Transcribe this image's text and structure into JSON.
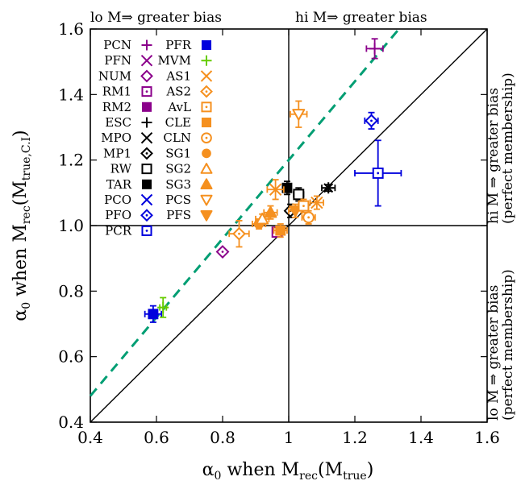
{
  "chart_data": {
    "type": "scatter",
    "xlabel": "α0 when Mrec(Mtrue)",
    "ylabel": "α0 when Mrec(Mtrue,C.I)",
    "xlabel_parts": {
      "main": "α",
      "sub": "0",
      "mid": " when M",
      "sub2": "rec",
      "mid2": "(M",
      "sub3": "true",
      "end": ")"
    },
    "ylabel_parts": {
      "main": "α",
      "sub": "0",
      "mid": " when M",
      "sub2": "rec",
      "mid2": "(M",
      "sub3": "true,C.I",
      "end": ")"
    },
    "xlim": [
      0.4,
      1.6
    ],
    "ylim": [
      0.4,
      1.6
    ],
    "xticks": [
      "0.4",
      "0.6",
      "0.8",
      "1",
      "1.2",
      "1.4",
      "1.6"
    ],
    "yticks": [
      "0.4",
      "0.6",
      "0.8",
      "1.0",
      "1.2",
      "1.4",
      "1.6"
    ],
    "xtick_values": [
      0.4,
      0.6,
      0.8,
      1.0,
      1.2,
      1.4,
      1.6
    ],
    "ytick_values": [
      0.4,
      0.6,
      0.8,
      1.0,
      1.2,
      1.4,
      1.6
    ],
    "annotations": {
      "top_left": "lo M⇒ greater bias",
      "top_right": "hi M⇒ greater bias",
      "right_upper_1": "hi M ⇒ greater bias",
      "right_upper_2": "(perfect membership)",
      "right_lower_1": "lo M ⇒ greater bias",
      "right_lower_2": "(perfect membership)"
    },
    "colors": {
      "purple": "#8b008b",
      "green": "#66cc00",
      "blue": "#0000dd",
      "orange": "#f5901f",
      "black": "#000000",
      "teal": "#009e73"
    },
    "fit_line": {
      "slope": 1.2,
      "intercept": 0.0,
      "color": "#009e73",
      "style": "dashed"
    },
    "reference_lines": {
      "diagonal": true,
      "x": 1.0,
      "y": 1.0
    },
    "legend": [
      {
        "name": "PCN",
        "marker": "plus",
        "color": "#8b008b"
      },
      {
        "name": "PFN",
        "marker": "cross",
        "color": "#8b008b"
      },
      {
        "name": "NUM",
        "marker": "diamond-open",
        "color": "#8b008b"
      },
      {
        "name": "RM1",
        "marker": "square-dot",
        "color": "#8b008b"
      },
      {
        "name": "RM2",
        "marker": "square-filled",
        "color": "#8b008b"
      },
      {
        "name": "ESC",
        "marker": "plus",
        "color": "#000000"
      },
      {
        "name": "MPO",
        "marker": "cross",
        "color": "#000000"
      },
      {
        "name": "MP1",
        "marker": "diamond-open",
        "color": "#000000"
      },
      {
        "name": "RW",
        "marker": "square-open",
        "color": "#000000"
      },
      {
        "name": "TAR",
        "marker": "square-filled",
        "color": "#000000"
      },
      {
        "name": "PCO",
        "marker": "cross",
        "color": "#0000dd"
      },
      {
        "name": "PFO",
        "marker": "diamond-open",
        "color": "#0000dd"
      },
      {
        "name": "PCR",
        "marker": "square-dot",
        "color": "#0000dd"
      },
      {
        "name": "PFR",
        "marker": "square-filled",
        "color": "#0000dd"
      },
      {
        "name": "MVM",
        "marker": "plus",
        "color": "#66cc00"
      },
      {
        "name": "AS1",
        "marker": "cross",
        "color": "#f5901f"
      },
      {
        "name": "AS2",
        "marker": "diamond-open",
        "color": "#f5901f"
      },
      {
        "name": "AvL",
        "marker": "square-dot",
        "color": "#f5901f"
      },
      {
        "name": "CLE",
        "marker": "square-filled",
        "color": "#f5901f"
      },
      {
        "name": "CLN",
        "marker": "circle-dot",
        "color": "#f5901f"
      },
      {
        "name": "SG1",
        "marker": "circle-filled",
        "color": "#f5901f"
      },
      {
        "name": "SG2",
        "marker": "triangle-up-open",
        "color": "#f5901f"
      },
      {
        "name": "SG3",
        "marker": "triangle-up-filled",
        "color": "#f5901f"
      },
      {
        "name": "PCS",
        "marker": "triangle-down-open",
        "color": "#f5901f"
      },
      {
        "name": "PFS",
        "marker": "triangle-down-filled",
        "color": "#f5901f"
      }
    ],
    "legend_columns": [
      [
        "PCN",
        "PFN",
        "NUM",
        "RM1",
        "RM2",
        "ESC",
        "MPO",
        "MP1",
        "RW",
        "TAR",
        "PCO",
        "PFO",
        "PCR"
      ],
      [
        "PFR",
        "MVM",
        "AS1",
        "AS2",
        "AvL",
        "CLE",
        "CLN",
        "SG1",
        "SG2",
        "SG3",
        "PCS",
        "PFS"
      ]
    ],
    "legend_marker_columns": [
      [
        {
          "m": "plus",
          "c": "#8b008b"
        },
        {
          "m": "cross",
          "c": "#8b008b"
        },
        {
          "m": "diamond-open",
          "c": "#8b008b"
        },
        {
          "m": "square-dot",
          "c": "#8b008b"
        },
        {
          "m": "square-filled",
          "c": "#8b008b"
        },
        {
          "m": "plus",
          "c": "#000000"
        },
        {
          "m": "cross",
          "c": "#000000"
        },
        {
          "m": "diamond-dot",
          "c": "#000000"
        },
        {
          "m": "square-open",
          "c": "#000000"
        },
        {
          "m": "square-filled",
          "c": "#000000"
        },
        {
          "m": "cross",
          "c": "#0000dd"
        },
        {
          "m": "diamond-dot",
          "c": "#0000dd"
        },
        {
          "m": "square-dot",
          "c": "#0000dd"
        }
      ],
      [
        {
          "m": "square-filled",
          "c": "#0000dd"
        },
        {
          "m": "plus",
          "c": "#66cc00"
        },
        {
          "m": "cross",
          "c": "#f5901f"
        },
        {
          "m": "diamond-dot",
          "c": "#f5901f"
        },
        {
          "m": "square-dot",
          "c": "#f5901f"
        },
        {
          "m": "square-filled",
          "c": "#f5901f"
        },
        {
          "m": "circle-dot",
          "c": "#f5901f"
        },
        {
          "m": "circle-filled",
          "c": "#f5901f"
        },
        {
          "m": "triangle-up-open",
          "c": "#f5901f"
        },
        {
          "m": "triangle-up-filled",
          "c": "#f5901f"
        },
        {
          "m": "triangle-down-open",
          "c": "#f5901f"
        },
        {
          "m": "triangle-down-filled",
          "c": "#f5901f"
        }
      ]
    ],
    "points": [
      {
        "x": 1.26,
        "y": 1.54,
        "xerr": 0.025,
        "yerr": 0.03,
        "marker": "plus",
        "color": "#8b008b"
      },
      {
        "x": 0.8,
        "y": 0.92,
        "xerr": 0.0,
        "yerr": 0.0,
        "marker": "diamond-dot",
        "color": "#8b008b"
      },
      {
        "x": 0.965,
        "y": 0.98,
        "xerr": 0.0,
        "yerr": 0.0,
        "marker": "square-dot",
        "color": "#8b008b"
      },
      {
        "x": 0.995,
        "y": 1.115,
        "xerr": 0.012,
        "yerr": 0.02,
        "marker": "square-filled",
        "color": "#000000"
      },
      {
        "x": 1.03,
        "y": 1.095,
        "xerr": 0.015,
        "yerr": 0.02,
        "marker": "square-open",
        "color": "#000000"
      },
      {
        "x": 1.005,
        "y": 1.045,
        "xerr": 0.01,
        "yerr": 0.02,
        "marker": "diamond-dot",
        "color": "#000000"
      },
      {
        "x": 1.12,
        "y": 1.115,
        "xerr": 0.02,
        "yerr": 0.01,
        "marker": "asterisk",
        "color": "#000000"
      },
      {
        "x": 1.25,
        "y": 1.32,
        "xerr": 0.02,
        "yerr": 0.025,
        "marker": "diamond-dot",
        "color": "#0000dd"
      },
      {
        "x": 1.27,
        "y": 1.16,
        "xerr": 0.07,
        "yerr": 0.1,
        "marker": "square-dot",
        "color": "#0000dd"
      },
      {
        "x": 0.59,
        "y": 0.73,
        "xerr": 0.025,
        "yerr": 0.025,
        "marker": "square-filled",
        "color": "#0000dd"
      },
      {
        "x": 0.62,
        "y": 0.75,
        "xerr": 0.01,
        "yerr": 0.03,
        "marker": "plus",
        "color": "#66cc00"
      },
      {
        "x": 1.03,
        "y": 1.34,
        "xerr": 0.025,
        "yerr": 0.04,
        "marker": "triangle-down-open",
        "color": "#f5901f"
      },
      {
        "x": 0.96,
        "y": 1.11,
        "xerr": 0.025,
        "yerr": 0.03,
        "marker": "cross",
        "color": "#f5901f"
      },
      {
        "x": 0.85,
        "y": 0.975,
        "xerr": 0.03,
        "yerr": 0.04,
        "marker": "diamond-dot",
        "color": "#f5901f"
      },
      {
        "x": 0.91,
        "y": 1.005,
        "xerr": 0.02,
        "yerr": 0.015,
        "marker": "circle-filled",
        "color": "#f5901f"
      },
      {
        "x": 0.92,
        "y": 1.02,
        "xerr": 0.02,
        "yerr": 0.015,
        "marker": "triangle-up-open",
        "color": "#f5901f"
      },
      {
        "x": 0.945,
        "y": 1.04,
        "xerr": 0.02,
        "yerr": 0.02,
        "marker": "triangle-up-filled",
        "color": "#f5901f"
      },
      {
        "x": 0.975,
        "y": 0.985,
        "xerr": 0.02,
        "yerr": 0.02,
        "marker": "square-filled",
        "color": "#f5901f"
      },
      {
        "x": 1.02,
        "y": 1.045,
        "xerr": 0.02,
        "yerr": 0.02,
        "marker": "triangle-down-filled",
        "color": "#f5901f"
      },
      {
        "x": 1.06,
        "y": 1.025,
        "xerr": 0.02,
        "yerr": 0.02,
        "marker": "circle-dot",
        "color": "#f5901f"
      },
      {
        "x": 1.085,
        "y": 1.07,
        "xerr": 0.02,
        "yerr": 0.02,
        "marker": "cross",
        "color": "#f5901f"
      },
      {
        "x": 1.045,
        "y": 1.06,
        "xerr": 0.015,
        "yerr": 0.02,
        "marker": "square-dot",
        "color": "#f5901f"
      }
    ]
  }
}
